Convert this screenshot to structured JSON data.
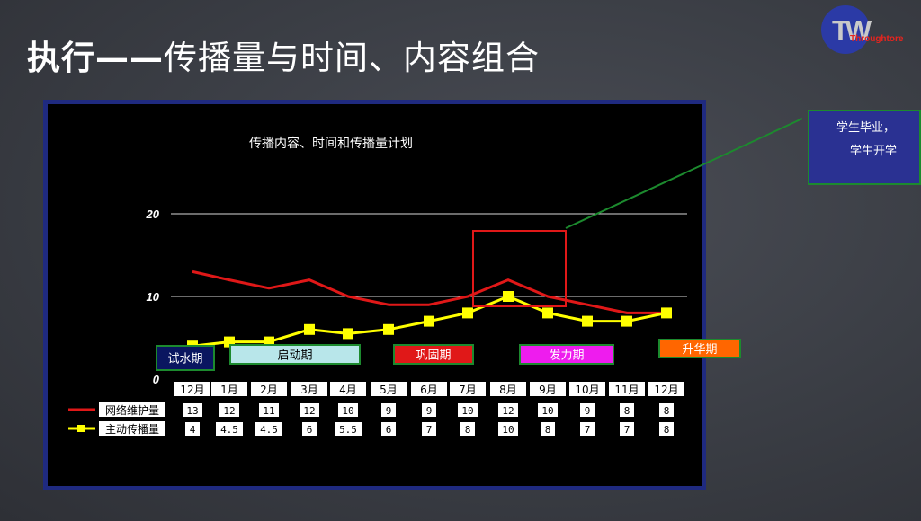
{
  "slide": {
    "title_bold": "执行——",
    "title_rest": "传播量与时间、内容组合",
    "logo_mark": "TW",
    "logo_text": "Throughtore",
    "note_line1": "学生毕业，",
    "note_line2": "学生开学"
  },
  "colors": {
    "maintenance_line": "#e01818",
    "active_line": "#ffff00",
    "frame": "#1f2a80",
    "highlight_box": "#e01818",
    "connector": "#1c8a2e"
  },
  "chart_data": {
    "type": "line",
    "title": "传播内容、时间和传播量计划",
    "categories": [
      "12月",
      "1月",
      "2月",
      "3月",
      "4月",
      "5月",
      "6月",
      "7月",
      "8月",
      "9月",
      "10月",
      "11月",
      "12月"
    ],
    "series": [
      {
        "name": "网络维护量",
        "values": [
          13,
          12,
          11,
          12,
          10,
          9,
          9,
          10,
          12,
          10,
          9,
          8,
          8
        ],
        "labels": [
          "13",
          "12",
          "11",
          "12",
          "10",
          "9",
          "9",
          "10",
          "12",
          "10",
          "9",
          "8",
          "8"
        ]
      },
      {
        "name": "主动传播量",
        "values": [
          4,
          4.5,
          4.5,
          6,
          5.5,
          6,
          7,
          8,
          10,
          8,
          7,
          7,
          8
        ],
        "labels": [
          "4",
          "4.5",
          "4.5",
          "6",
          "5.5",
          "6",
          "7",
          "8",
          "10",
          "8",
          "7",
          "7",
          "8"
        ]
      }
    ],
    "y_ticks": [
      "20",
      "10",
      "0"
    ],
    "ylim": [
      0,
      20
    ],
    "grid": true,
    "legend": "in data table rows",
    "phases": [
      {
        "label": "试水期",
        "fill": "#0a1660",
        "border": "#1c8a2e",
        "text": "#ffffff"
      },
      {
        "label": "启动期",
        "fill": "#b8e6ea",
        "border": "#1c8a2e",
        "text": "#000000"
      },
      {
        "label": "巩固期",
        "fill": "#e01818",
        "border": "#1c8a2e",
        "text": "#ffffff"
      },
      {
        "label": "发力期",
        "fill": "#ee1cee",
        "border": "#1c8a2e",
        "text": "#ffffff"
      },
      {
        "label": "升华期",
        "fill": "#ff6600",
        "border": "#1c8a2e",
        "text": "#ffffff"
      }
    ]
  }
}
